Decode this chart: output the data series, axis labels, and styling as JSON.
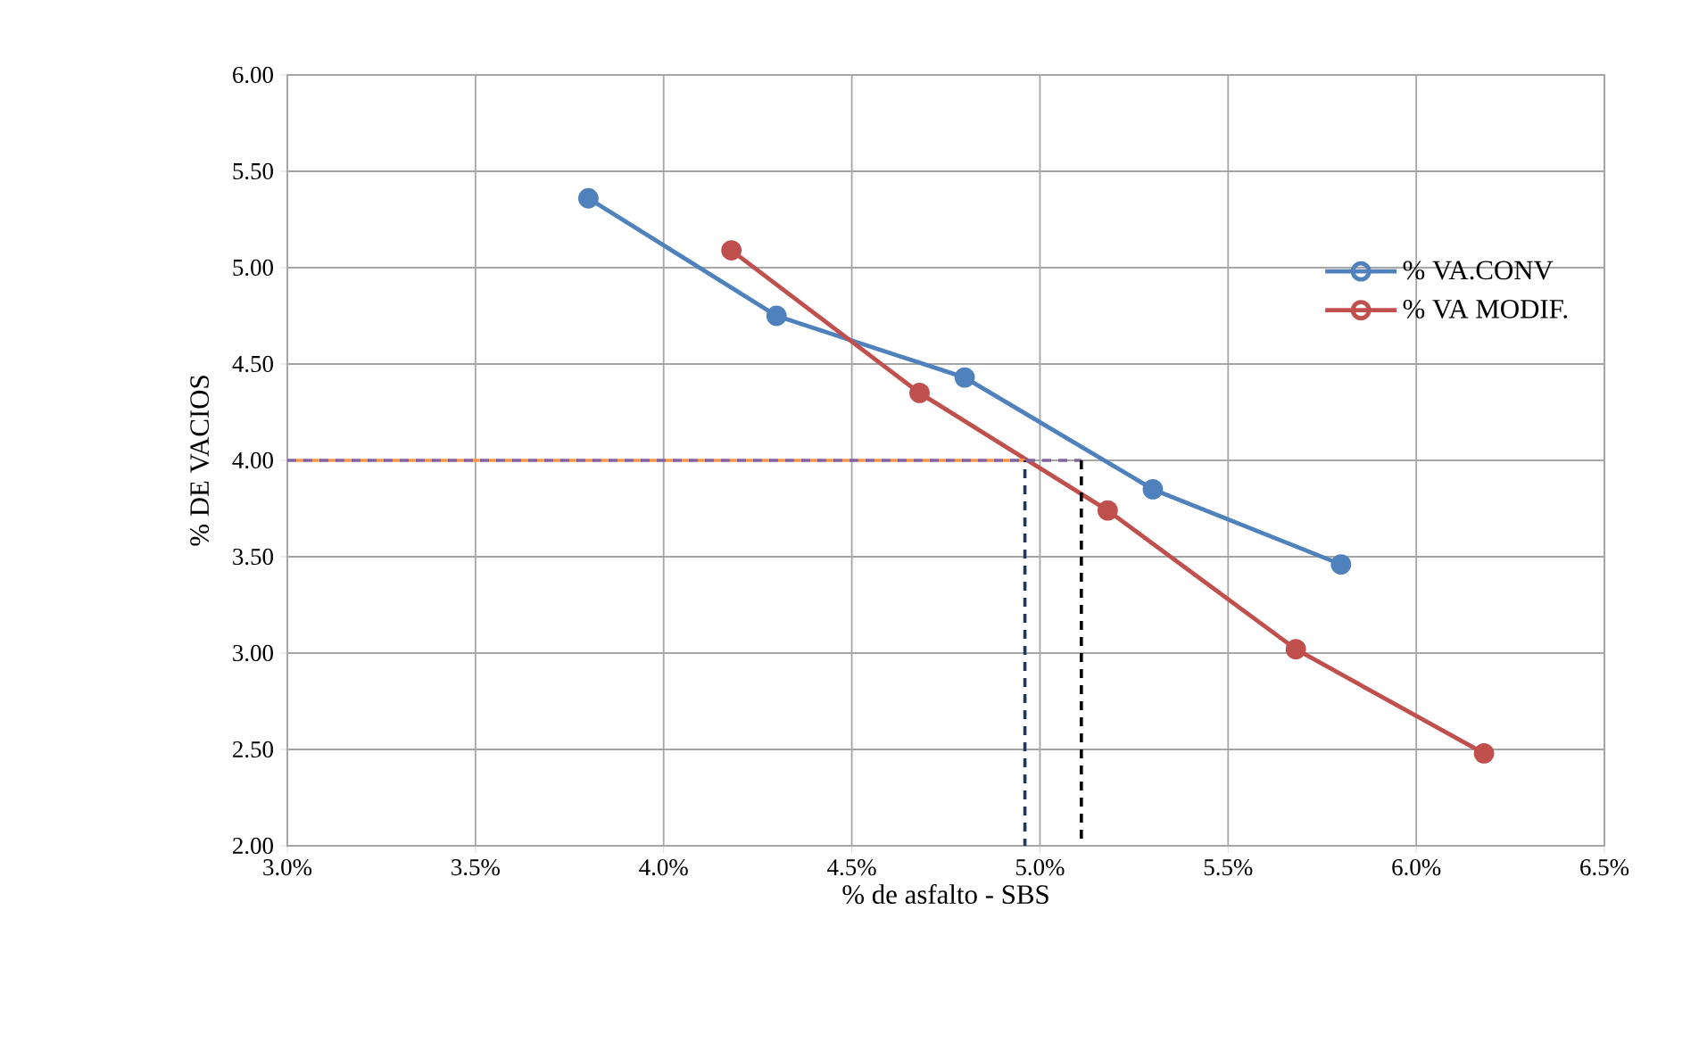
{
  "chart_data": {
    "type": "line",
    "xlabel": "% de asfalto - SBS",
    "ylabel": "% DE VACIOS",
    "series": [
      {
        "name": "% VA.CONV",
        "color": "#4f81bd",
        "x": [
          3.8,
          4.3,
          4.8,
          5.3,
          5.8
        ],
        "values": [
          5.36,
          4.75,
          4.43,
          3.85,
          3.46
        ]
      },
      {
        "name": "% VA MODIF.",
        "color": "#c0504d",
        "x": [
          4.18,
          4.68,
          5.18,
          5.68,
          6.18
        ],
        "values": [
          5.09,
          4.35,
          3.74,
          3.02,
          2.48
        ]
      },
      {
        "color": "#f79646",
        "x": [
          3.0,
          4.96
        ],
        "values": [
          4.0,
          4.0
        ],
        "line_style": "dashed",
        "marker": "none"
      },
      {
        "color": "#1f3864",
        "x": [
          4.96,
          4.96
        ],
        "values": [
          4.0,
          2.0
        ],
        "line_style": "dashed",
        "marker": "none"
      },
      {
        "color": "#8064a2",
        "x": [
          3.0,
          5.11
        ],
        "values": [
          4.0,
          4.0
        ],
        "line_style": "dashed",
        "marker": "none"
      },
      {
        "color": "#000000",
        "x": [
          5.11,
          5.11
        ],
        "values": [
          4.0,
          2.0
        ],
        "line_style": "dashed",
        "marker": "none"
      }
    ],
    "xlim": [
      3.0,
      6.5
    ],
    "xticks": [
      {
        "value": 3.0,
        "label": "3.0%"
      },
      {
        "value": 3.5,
        "label": "3.5%"
      },
      {
        "value": 4.0,
        "label": "4.0%"
      },
      {
        "value": 4.5,
        "label": "4.5%"
      },
      {
        "value": 5.0,
        "label": "5.0%"
      },
      {
        "value": 5.5,
        "label": "5.5%"
      },
      {
        "value": 6.0,
        "label": "6.0%"
      },
      {
        "value": 6.5,
        "label": "6.5%"
      }
    ],
    "ylim": [
      2.0,
      6.0
    ],
    "yticks": [
      {
        "value": 2,
        "label": "2.00"
      },
      {
        "value": 2.5,
        "label": "2.50"
      },
      {
        "value": 3,
        "label": "3.00"
      },
      {
        "value": 3.5,
        "label": "3.50"
      },
      {
        "value": 4,
        "label": "4.00"
      },
      {
        "value": 4.5,
        "label": "4.50"
      },
      {
        "value": 5,
        "label": "5.00"
      },
      {
        "value": 5.5,
        "label": "5.50"
      },
      {
        "value": 6,
        "label": "6.00"
      }
    ],
    "grid": true,
    "legend": "right",
    "marker": "circle",
    "line_style": "solid"
  }
}
